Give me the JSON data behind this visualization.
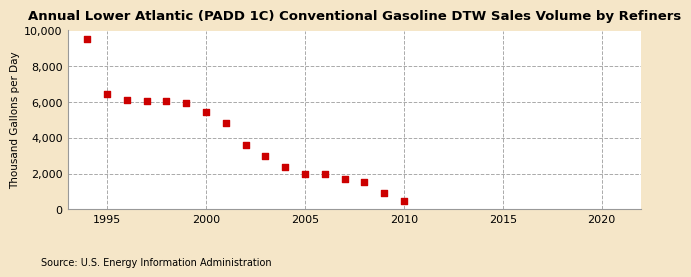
{
  "title": "Annual Lower Atlantic (PADD 1C) Conventional Gasoline DTW Sales Volume by Refiners",
  "ylabel": "Thousand Gallons per Day",
  "source": "Source: U.S. Energy Information Administration",
  "figure_bg": "#f5e6c8",
  "plot_bg": "#ffffff",
  "marker_color": "#cc0000",
  "years": [
    1994,
    1995,
    1996,
    1997,
    1998,
    1999,
    2000,
    2001,
    2002,
    2003,
    2004,
    2005,
    2006,
    2007,
    2008,
    2009,
    2010
  ],
  "values": [
    9500,
    6450,
    6100,
    6050,
    6050,
    5950,
    5450,
    4850,
    3600,
    2980,
    2380,
    1950,
    2000,
    1680,
    1500,
    920,
    480
  ],
  "xlim": [
    1993,
    2022
  ],
  "ylim": [
    0,
    10000
  ],
  "xticks": [
    1995,
    2000,
    2005,
    2010,
    2015,
    2020
  ],
  "yticks": [
    0,
    2000,
    4000,
    6000,
    8000,
    10000
  ],
  "ytick_labels": [
    "0",
    "2,000",
    "4,000",
    "6,000",
    "8,000",
    "10,000"
  ]
}
